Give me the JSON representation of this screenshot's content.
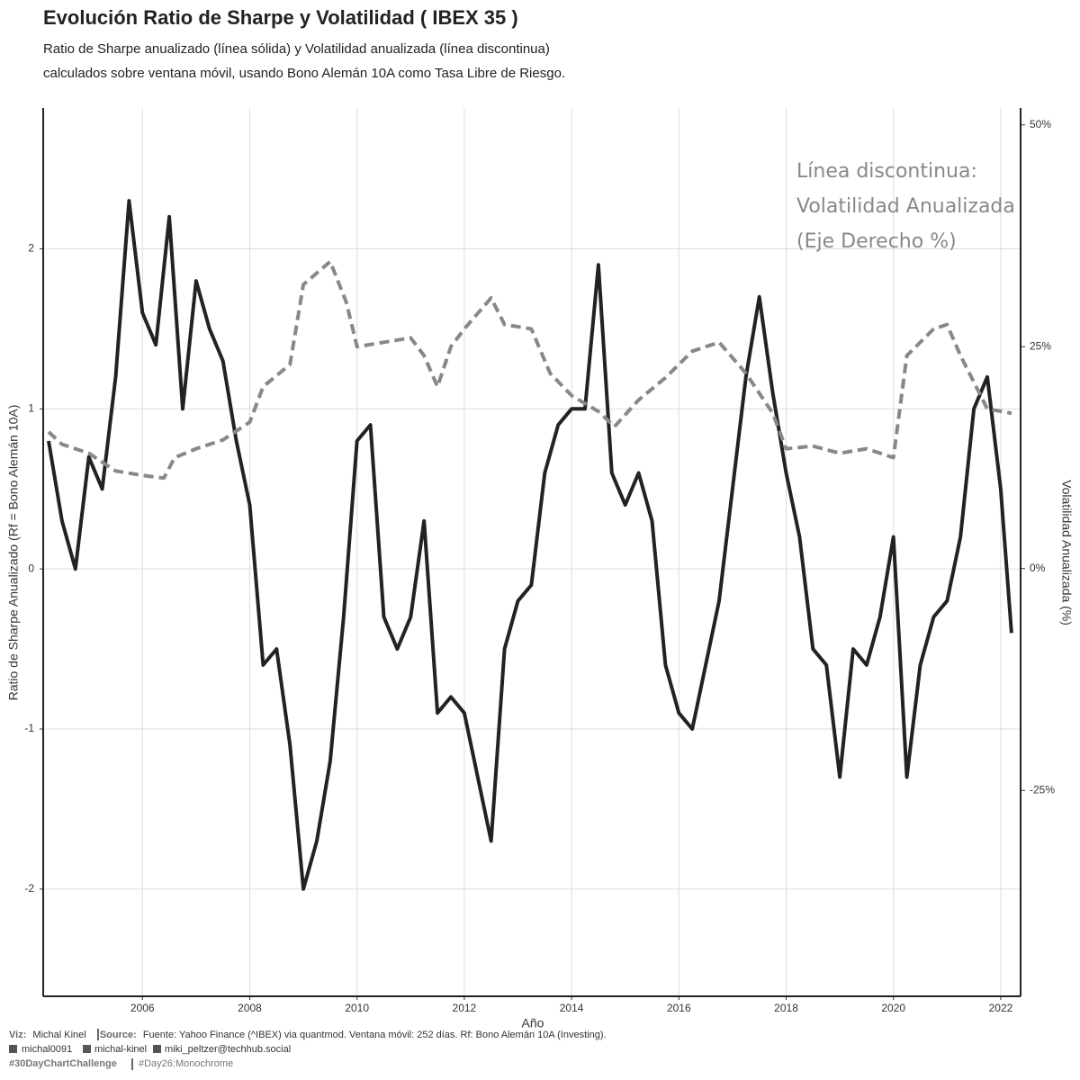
{
  "chart_data": {
    "type": "line",
    "title": "Evolución Ratio de Sharpe y Volatilidad ( IBEX 35 )",
    "subtitle": [
      "Ratio de Sharpe anualizado (línea sólida) y Volatilidad anualizada (línea discontinua)",
      "calculados sobre ventana móvil, usando Bono Alemán 10A como Tasa Libre de Riesgo."
    ],
    "xlabel": "Año",
    "ylabel": "Ratio de Sharpe Anualizado (Rf = Bono Alemán 10A)",
    "y2label": "Volatilidad Anualizada (%)",
    "annotation": [
      "Línea discontinua:",
      "Volatilidad Anualizada",
      "(Eje Derecho %)"
    ],
    "xlim": [
      2004.15,
      2022.37
    ],
    "xticks": [
      2006,
      2008,
      2010,
      2012,
      2014,
      2016,
      2018,
      2020,
      2022
    ],
    "ylim": [
      -2.67,
      2.88
    ],
    "yticks": [
      -2,
      -1,
      0,
      1,
      2
    ],
    "y2lim": [
      -48.2,
      51.9
    ],
    "y2ticks": [
      {
        "value": -25,
        "label": "-25%"
      },
      {
        "value": 0,
        "label": "0%"
      },
      {
        "value": 25,
        "label": "25%"
      },
      {
        "value": 50,
        "label": "50%"
      }
    ],
    "grid": true,
    "series": [
      {
        "color": "#222222",
        "line_style": "solid",
        "axis": "y",
        "x": [
          2004.25,
          2004.5,
          2004.75,
          2005.0,
          2005.25,
          2005.5,
          2005.75,
          2006.0,
          2006.25,
          2006.5,
          2006.75,
          2007.0,
          2007.25,
          2007.5,
          2007.75,
          2008.0,
          2008.25,
          2008.5,
          2008.75,
          2009.0,
          2009.25,
          2009.5,
          2009.75,
          2010.0,
          2010.25,
          2010.5,
          2010.75,
          2011.0,
          2011.25,
          2011.5,
          2011.75,
          2012.0,
          2012.25,
          2012.5,
          2012.75,
          2013.0,
          2013.25,
          2013.5,
          2013.75,
          2014.0,
          2014.25,
          2014.5,
          2014.75,
          2015.0,
          2015.25,
          2015.5,
          2015.75,
          2016.0,
          2016.25,
          2016.5,
          2016.75,
          2017.0,
          2017.25,
          2017.5,
          2017.75,
          2018.0,
          2018.25,
          2018.5,
          2018.75,
          2019.0,
          2019.25,
          2019.5,
          2019.75,
          2020.0,
          2020.25,
          2020.5,
          2020.75,
          2021.0,
          2021.25,
          2021.5,
          2021.75,
          2022.0,
          2022.2
        ],
        "values": [
          0.8,
          0.3,
          0.0,
          0.7,
          0.5,
          1.2,
          2.3,
          1.6,
          1.4,
          2.2,
          1.0,
          1.8,
          1.5,
          1.3,
          0.8,
          0.4,
          -0.6,
          -0.5,
          -1.1,
          -2.0,
          -1.7,
          -1.2,
          -0.3,
          0.8,
          0.9,
          -0.3,
          -0.5,
          -0.3,
          0.3,
          -0.9,
          -0.8,
          -0.9,
          -1.3,
          -1.7,
          -0.5,
          -0.2,
          -0.1,
          0.6,
          0.9,
          1.0,
          1.0,
          1.9,
          0.6,
          0.4,
          0.6,
          0.3,
          -0.6,
          -0.9,
          -1.0,
          -0.6,
          -0.2,
          0.5,
          1.2,
          1.7,
          1.1,
          0.6,
          0.2,
          -0.5,
          -0.6,
          -1.3,
          -0.5,
          -0.6,
          -0.3,
          0.2,
          -1.3,
          -0.6,
          -0.3,
          -0.2,
          0.2,
          1.0,
          1.2,
          0.5,
          -0.4
        ]
      },
      {
        "color": "#888888",
        "line_style": "dashed",
        "axis": "y2",
        "x": [
          2004.25,
          2004.5,
          2005.0,
          2005.5,
          2006.0,
          2006.4,
          2006.6,
          2007.0,
          2007.5,
          2008.0,
          2008.25,
          2008.75,
          2009.0,
          2009.5,
          2009.8,
          2010.0,
          2010.5,
          2011.0,
          2011.25,
          2011.5,
          2011.75,
          2012.0,
          2012.5,
          2012.75,
          2013.25,
          2013.6,
          2014.0,
          2014.5,
          2014.8,
          2015.25,
          2015.75,
          2016.25,
          2016.75,
          2017.25,
          2017.75,
          2018.0,
          2018.5,
          2019.0,
          2019.5,
          2020.0,
          2020.25,
          2020.75,
          2021.0,
          2021.25,
          2021.75,
          2022.2
        ],
        "values": [
          15.4,
          14,
          13,
          11,
          10.5,
          10.2,
          12.5,
          13.5,
          14.5,
          16.5,
          20.5,
          23,
          32,
          34.6,
          30,
          25,
          25.5,
          26,
          24,
          20.5,
          25,
          27,
          30.5,
          27.5,
          27,
          22,
          19.5,
          17.7,
          16,
          19,
          21.5,
          24.5,
          25.5,
          22,
          17.5,
          13.5,
          13.8,
          13,
          13.5,
          12.5,
          24,
          27,
          27.5,
          24,
          18,
          17.5
        ]
      }
    ]
  },
  "footer": {
    "viz_label": "Viz:",
    "viz": "Michal Kinel",
    "source_label": "Source:",
    "source": "Fuente: Yahoo Finance (^IBEX) via quantmod. Ventana móvil: 252 días. Rf: Bono Alemán 10A (Investing).",
    "social": [
      "michal0091",
      "michal-kinel",
      "miki_peltzer@techhub.social"
    ],
    "hashtags": [
      "#30DayChartChallenge",
      "#Day26:Monochrome"
    ]
  }
}
